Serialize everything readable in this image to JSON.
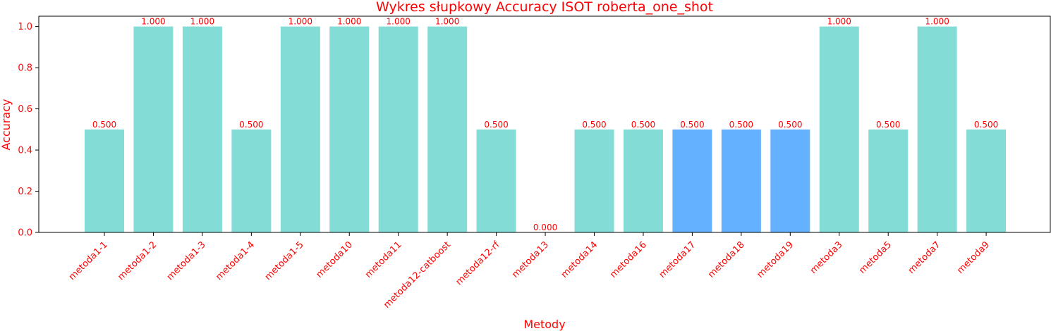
{
  "chart_data": {
    "type": "bar",
    "title": "Wykres słupkowy Accuracy ISOT roberta_one_shot",
    "xlabel": "Metody",
    "ylabel": "Accuracy",
    "ylim": [
      0,
      1.05
    ],
    "yticks": [
      "0.0",
      "0.2",
      "0.4",
      "0.6",
      "0.8",
      "1.0"
    ],
    "grid": false,
    "text_color": "#ff0000",
    "categories": [
      "metoda1-1",
      "metoda1-2",
      "metoda1-3",
      "metoda1-4",
      "metoda1-5",
      "metoda10",
      "metoda11",
      "metoda12-catboost",
      "metoda12-rf",
      "metoda13",
      "metoda14",
      "metoda16",
      "metoda17",
      "metoda18",
      "metoda19",
      "metoda3",
      "metoda5",
      "metoda7",
      "metoda9"
    ],
    "values": [
      0.5,
      1.0,
      1.0,
      0.5,
      1.0,
      1.0,
      1.0,
      1.0,
      0.5,
      0.0,
      0.5,
      0.5,
      0.5,
      0.5,
      0.5,
      1.0,
      0.5,
      1.0,
      0.5
    ],
    "value_labels": [
      "0.500",
      "1.000",
      "1.000",
      "0.500",
      "1.000",
      "1.000",
      "1.000",
      "1.000",
      "0.500",
      "0.000",
      "0.500",
      "0.500",
      "0.500",
      "0.500",
      "0.500",
      "1.000",
      "0.500",
      "1.000",
      "0.500"
    ],
    "colors": [
      "#84dcd6",
      "#84dcd6",
      "#84dcd6",
      "#84dcd6",
      "#84dcd6",
      "#84dcd6",
      "#84dcd6",
      "#84dcd6",
      "#84dcd6",
      "#84dcd6",
      "#84dcd6",
      "#84dcd6",
      "#64b1ff",
      "#64b1ff",
      "#64b1ff",
      "#84dcd6",
      "#84dcd6",
      "#84dcd6",
      "#84dcd6"
    ]
  }
}
